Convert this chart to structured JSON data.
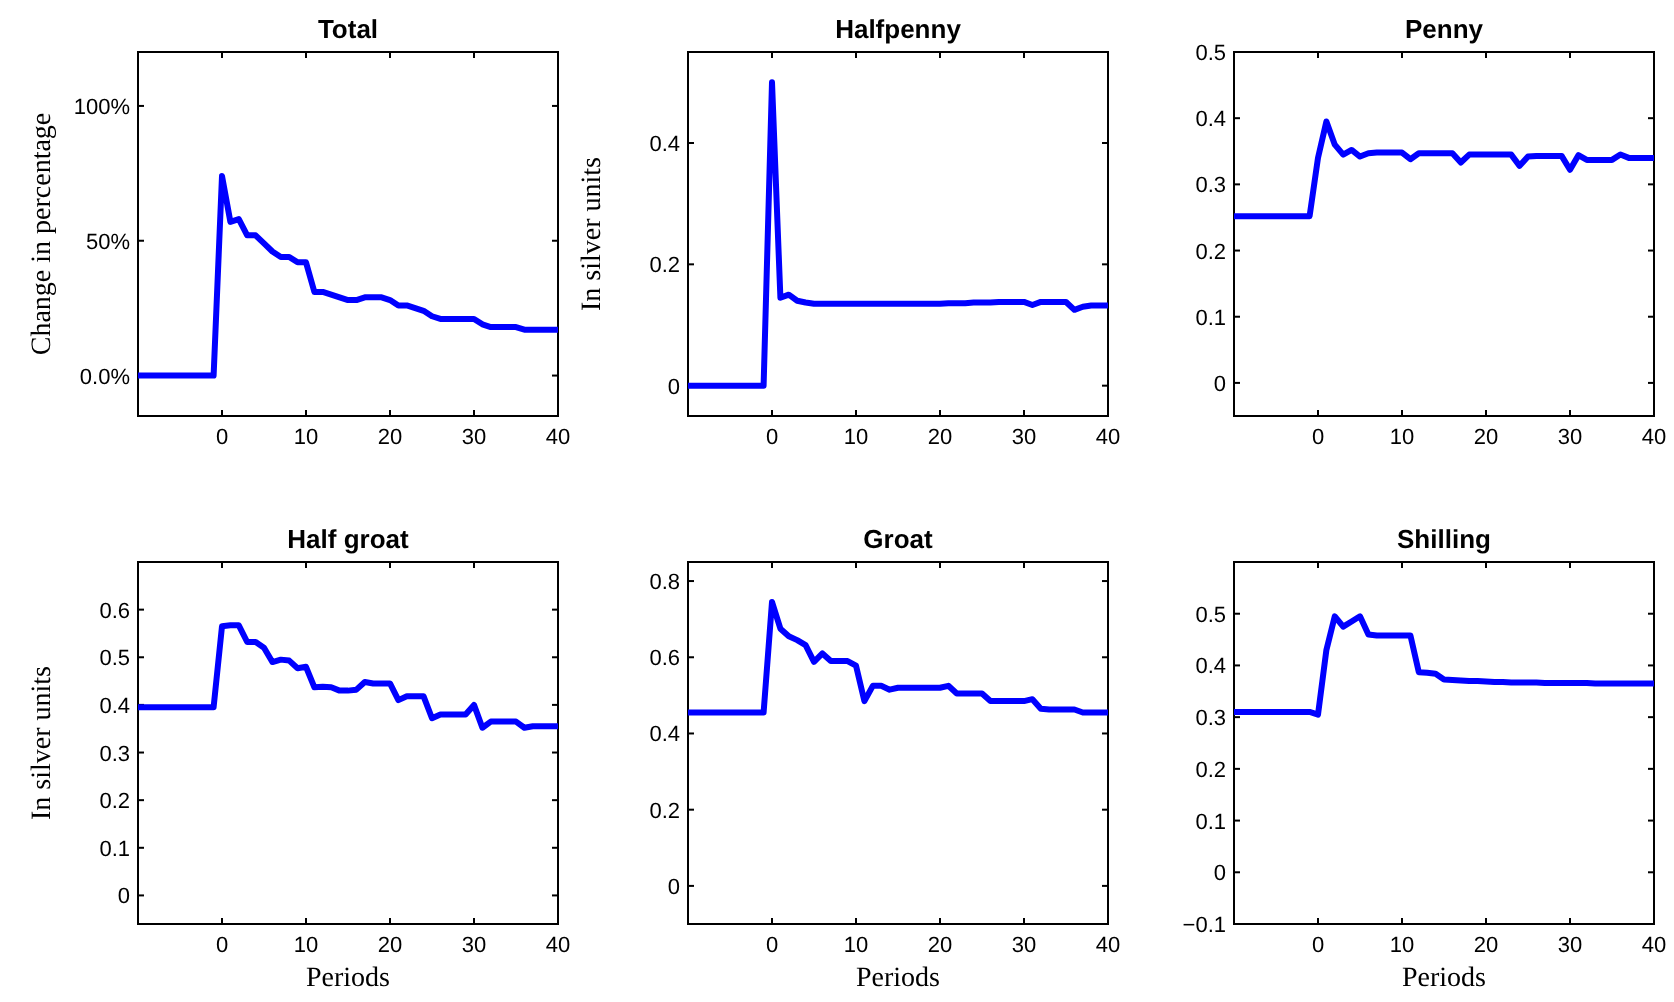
{
  "chart_data": [
    {
      "type": "line",
      "title": "Total",
      "ylabel": "Change in percentage",
      "x": [
        -10,
        -1,
        0,
        1,
        2,
        3,
        4,
        5,
        6,
        7,
        8,
        9,
        10,
        11,
        12,
        13,
        14,
        15,
        16,
        17,
        18,
        19,
        20,
        21,
        22,
        23,
        24,
        25,
        26,
        27,
        28,
        29,
        30,
        31,
        32,
        33,
        34,
        35,
        36,
        37,
        38,
        39,
        40
      ],
      "xlim": [
        -10,
        40
      ],
      "xticks": [
        0,
        10,
        20,
        30,
        40
      ],
      "ylim": [
        -15,
        120
      ],
      "yticks": [
        {
          "value": 0,
          "label": "0.0%"
        },
        {
          "value": 50,
          "label": "50%"
        },
        {
          "value": 100,
          "label": "100%"
        }
      ],
      "series": [
        {
          "color": "#0000ff",
          "values": [
            0,
            0,
            74,
            57,
            58,
            52,
            52,
            49,
            46,
            44,
            44,
            42,
            42,
            31,
            31,
            30,
            29,
            28,
            28,
            29,
            29,
            29,
            28,
            26,
            26,
            25,
            24,
            22,
            21,
            21,
            21,
            21,
            21,
            19,
            18,
            18,
            18,
            18,
            17,
            17,
            17,
            17,
            17
          ]
        }
      ]
    },
    {
      "type": "line",
      "title": "Halfpenny",
      "ylabel": "In silver units",
      "x": [
        -10,
        -1,
        0,
        1,
        2,
        3,
        4,
        5,
        6,
        7,
        8,
        9,
        10,
        11,
        12,
        13,
        14,
        15,
        16,
        17,
        18,
        19,
        20,
        21,
        22,
        23,
        24,
        25,
        26,
        27,
        28,
        29,
        30,
        31,
        32,
        33,
        34,
        35,
        36,
        37,
        38,
        39,
        40
      ],
      "xlim": [
        -10,
        40
      ],
      "xticks": [
        0,
        10,
        20,
        30,
        40
      ],
      "ylim": [
        -0.05,
        0.55
      ],
      "yticks": [
        0,
        0.2,
        0.4
      ],
      "series": [
        {
          "color": "#0000ff",
          "values": [
            0,
            0,
            0.5,
            0.145,
            0.15,
            0.14,
            0.137,
            0.135,
            0.135,
            0.135,
            0.135,
            0.135,
            0.135,
            0.135,
            0.135,
            0.135,
            0.135,
            0.135,
            0.135,
            0.135,
            0.135,
            0.135,
            0.135,
            0.136,
            0.136,
            0.136,
            0.137,
            0.137,
            0.137,
            0.138,
            0.138,
            0.138,
            0.138,
            0.133,
            0.138,
            0.138,
            0.138,
            0.138,
            0.125,
            0.13,
            0.132,
            0.132,
            0.132
          ]
        }
      ]
    },
    {
      "type": "line",
      "title": "Penny",
      "x": [
        -10,
        -1,
        0,
        1,
        2,
        3,
        4,
        5,
        6,
        7,
        8,
        9,
        10,
        11,
        12,
        13,
        14,
        15,
        16,
        17,
        18,
        19,
        20,
        21,
        22,
        23,
        24,
        25,
        26,
        27,
        28,
        29,
        30,
        31,
        32,
        33,
        34,
        35,
        36,
        37,
        38,
        39,
        40
      ],
      "xlim": [
        -10,
        40
      ],
      "xticks": [
        0,
        10,
        20,
        30,
        40
      ],
      "ylim": [
        -0.05,
        0.5
      ],
      "yticks": [
        0,
        0.1,
        0.2,
        0.3,
        0.4,
        0.5
      ],
      "series": [
        {
          "color": "#0000ff",
          "values": [
            0.252,
            0.252,
            0.34,
            0.395,
            0.36,
            0.345,
            0.352,
            0.342,
            0.347,
            0.348,
            0.348,
            0.348,
            0.348,
            0.338,
            0.347,
            0.347,
            0.347,
            0.347,
            0.347,
            0.333,
            0.345,
            0.345,
            0.345,
            0.345,
            0.345,
            0.345,
            0.328,
            0.342,
            0.343,
            0.343,
            0.343,
            0.343,
            0.322,
            0.344,
            0.337,
            0.337,
            0.337,
            0.337,
            0.345,
            0.34,
            0.34,
            0.34,
            0.34
          ]
        }
      ]
    },
    {
      "type": "line",
      "title": "Half groat",
      "ylabel": "In silver units",
      "xlabel": "Periods",
      "x": [
        -10,
        -1,
        0,
        1,
        2,
        3,
        4,
        5,
        6,
        7,
        8,
        9,
        10,
        11,
        12,
        13,
        14,
        15,
        16,
        17,
        18,
        19,
        20,
        21,
        22,
        23,
        24,
        25,
        26,
        27,
        28,
        29,
        30,
        31,
        32,
        33,
        34,
        35,
        36,
        37,
        38,
        39,
        40
      ],
      "xlim": [
        -10,
        40
      ],
      "xticks": [
        0,
        10,
        20,
        30,
        40
      ],
      "ylim": [
        -0.06,
        0.7
      ],
      "yticks": [
        0,
        0.1,
        0.2,
        0.3,
        0.4,
        0.5,
        0.6
      ],
      "series": [
        {
          "color": "#0000ff",
          "values": [
            0.395,
            0.395,
            0.565,
            0.567,
            0.567,
            0.532,
            0.532,
            0.52,
            0.49,
            0.495,
            0.493,
            0.477,
            0.48,
            0.437,
            0.438,
            0.437,
            0.43,
            0.43,
            0.432,
            0.448,
            0.445,
            0.445,
            0.445,
            0.41,
            0.418,
            0.418,
            0.418,
            0.372,
            0.38,
            0.38,
            0.38,
            0.38,
            0.4,
            0.352,
            0.365,
            0.365,
            0.365,
            0.365,
            0.352,
            0.355,
            0.355,
            0.355,
            0.355
          ]
        }
      ]
    },
    {
      "type": "line",
      "title": "Groat",
      "xlabel": "Periods",
      "x": [
        -10,
        -1,
        0,
        1,
        2,
        3,
        4,
        5,
        6,
        7,
        8,
        9,
        10,
        11,
        12,
        13,
        14,
        15,
        16,
        17,
        18,
        19,
        20,
        21,
        22,
        23,
        24,
        25,
        26,
        27,
        28,
        29,
        30,
        31,
        32,
        33,
        34,
        35,
        36,
        37,
        38,
        39,
        40
      ],
      "xlim": [
        -10,
        40
      ],
      "xticks": [
        0,
        10,
        20,
        30,
        40
      ],
      "ylim": [
        -0.1,
        0.85
      ],
      "yticks": [
        0,
        0.2,
        0.4,
        0.6,
        0.8
      ],
      "series": [
        {
          "color": "#0000ff",
          "values": [
            0.455,
            0.455,
            0.745,
            0.675,
            0.655,
            0.645,
            0.632,
            0.588,
            0.61,
            0.59,
            0.59,
            0.59,
            0.578,
            0.485,
            0.525,
            0.525,
            0.515,
            0.52,
            0.52,
            0.52,
            0.52,
            0.52,
            0.52,
            0.525,
            0.505,
            0.505,
            0.505,
            0.505,
            0.485,
            0.485,
            0.485,
            0.485,
            0.485,
            0.49,
            0.465,
            0.463,
            0.463,
            0.463,
            0.463,
            0.455,
            0.455,
            0.455,
            0.455
          ]
        }
      ]
    },
    {
      "type": "line",
      "title": "Shilling",
      "xlabel": "Periods",
      "x": [
        -10,
        -1,
        0,
        1,
        2,
        3,
        4,
        5,
        6,
        7,
        8,
        9,
        10,
        11,
        12,
        13,
        14,
        15,
        16,
        17,
        18,
        19,
        20,
        21,
        22,
        23,
        24,
        25,
        26,
        27,
        28,
        29,
        30,
        31,
        32,
        33,
        34,
        35,
        36,
        37,
        38,
        39,
        40
      ],
      "xlim": [
        -10,
        40
      ],
      "xticks": [
        0,
        10,
        20,
        30,
        40
      ],
      "ylim": [
        -0.1,
        0.6
      ],
      "yticks": [
        -0.1,
        0,
        0.1,
        0.2,
        0.3,
        0.4,
        0.5
      ],
      "series": [
        {
          "color": "#0000ff",
          "values": [
            0.31,
            0.31,
            0.305,
            0.43,
            0.495,
            0.475,
            0.485,
            0.495,
            0.46,
            0.458,
            0.458,
            0.458,
            0.458,
            0.458,
            0.387,
            0.386,
            0.384,
            0.373,
            0.372,
            0.371,
            0.37,
            0.37,
            0.369,
            0.368,
            0.368,
            0.367,
            0.367,
            0.367,
            0.367,
            0.366,
            0.366,
            0.366,
            0.366,
            0.366,
            0.366,
            0.365,
            0.365,
            0.365,
            0.365,
            0.365,
            0.365,
            0.365,
            0.365
          ]
        }
      ]
    }
  ]
}
